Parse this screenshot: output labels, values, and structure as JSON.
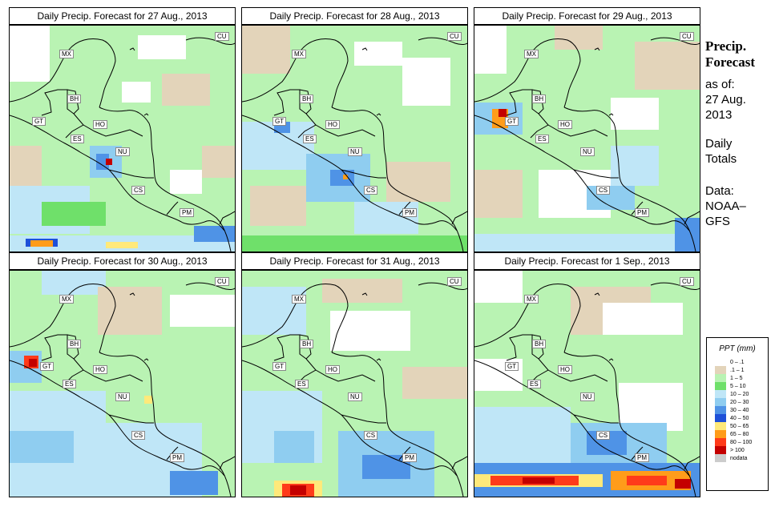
{
  "panels": [
    {
      "title": "Daily Precip. Forecast for  27 Aug., 2013"
    },
    {
      "title": "Daily Precip. Forecast for  28 Aug., 2013"
    },
    {
      "title": "Daily Precip. Forecast for  29 Aug., 2013"
    },
    {
      "title": "Daily Precip. Forecast for  30 Aug., 2013"
    },
    {
      "title": "Daily Precip. Forecast for  31 Aug., 2013"
    },
    {
      "title": "Daily Precip. Forecast for  1 Sep., 2013"
    }
  ],
  "country_labels": {
    "mx": "MX",
    "cu": "CU",
    "bh": "BH",
    "gt": "GT",
    "ho": "HO",
    "es": "ES",
    "nu": "NU",
    "cs": "CS",
    "pm": "PM"
  },
  "side": {
    "title_line1": "Precip.",
    "title_line2": "Forecast",
    "asof": "as of:",
    "date_line1": "27 Aug.",
    "date_line2": "2013",
    "daily_line1": "Daily",
    "daily_line2": "Totals",
    "data_line1": "Data:",
    "data_line2": "NOAA–",
    "data_line3": "GFS"
  },
  "legend": {
    "title": "PPT (mm)",
    "items": [
      {
        "label": "0 – .1",
        "color": "#ffffff"
      },
      {
        "label": ".1 – 1",
        "color": "#e3d4ba"
      },
      {
        "label": "1 – 5",
        "color": "#b9f3b3"
      },
      {
        "label": "5 – 10",
        "color": "#6fe06a"
      },
      {
        "label": "10 – 20",
        "color": "#bfe6f7"
      },
      {
        "label": "20 – 30",
        "color": "#8fcdf0"
      },
      {
        "label": "30 – 40",
        "color": "#4f93e6"
      },
      {
        "label": "40 – 50",
        "color": "#1e50d8"
      },
      {
        "label": "50 – 65",
        "color": "#ffe97a"
      },
      {
        "label": "65 – 80",
        "color": "#ff9c1a"
      },
      {
        "label": "80 – 100",
        "color": "#ff3b1a"
      },
      {
        "label": "> 100",
        "color": "#c40000"
      },
      {
        "label": "nodata",
        "color": "#cccccc"
      }
    ]
  }
}
